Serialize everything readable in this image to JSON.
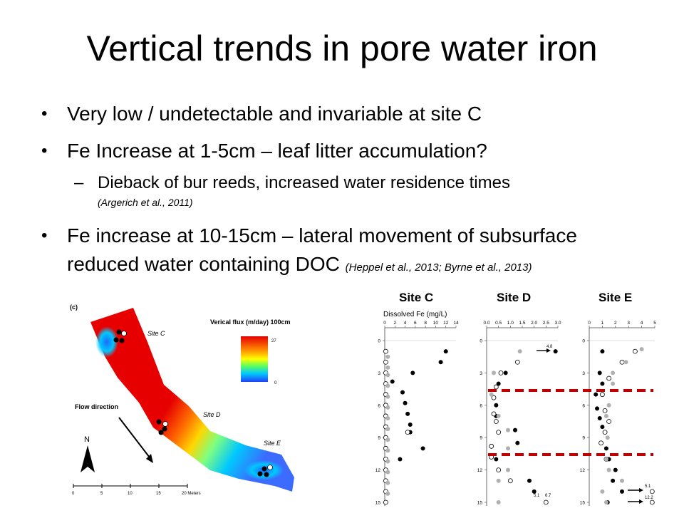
{
  "slide": {
    "title": "Vertical trends in pore water iron",
    "bullets": [
      {
        "text": "Very low / undetectable and invariable at site C"
      },
      {
        "text": "Fe Increase at 1-5cm – leaf litter accumulation?"
      },
      {
        "text": "Fe increase at 10-15cm – lateral movement of subsurface",
        "text2": "reduced water containing DOC",
        "cite": "(Heppel et al., 2013; Byrne et al., 2013)"
      }
    ],
    "subbullet": {
      "text": "Dieback of bur reeds, increased water residence times",
      "cite": "(Argerich et al., 2011)"
    }
  },
  "map": {
    "panel_label": "(c)",
    "legend_title": "Verical flux (m/day) 100cm",
    "legend_max": "27",
    "legend_min": "0",
    "flow_label": "Flow direction",
    "north": "N",
    "site_labels": [
      "Site C",
      "Site D",
      "Site E"
    ],
    "scale_labels": [
      "0",
      "5",
      "10",
      "15",
      "20 Meters"
    ],
    "colors": {
      "high": "#e60000",
      "mid": "#ffd700",
      "low": "#1e90ff"
    }
  },
  "profiles": {
    "site_headers": [
      "Site C",
      "Site D",
      "Site E"
    ],
    "axis_title": "Dissolved Fe (mg/L)",
    "depth_ticks": [
      "0",
      "3",
      "6",
      "9",
      "12",
      "15"
    ],
    "annotations_d": [
      "4.8",
      "5.1",
      "6.7"
    ],
    "annotations_e": [
      "5.1",
      "12.2"
    ],
    "dashed_line_color": "#c00000"
  },
  "chart_data": [
    {
      "type": "scatter",
      "title": "Site C",
      "xlabel": "Dissolved Fe (mg/L)",
      "x_ticks": [
        "0",
        "2",
        "4",
        "6",
        "8",
        "10",
        "12",
        "14"
      ],
      "xlim": [
        0,
        14
      ],
      "ylim": [
        0,
        15
      ],
      "series": [
        {
          "style": "filled",
          "points": [
            [
              12,
              1
            ],
            [
              11,
              2
            ],
            [
              5.5,
              3
            ],
            [
              1.5,
              3.8
            ],
            [
              3.5,
              4.8
            ],
            [
              4,
              5.8
            ],
            [
              4.5,
              6.8
            ],
            [
              5,
              7.8
            ],
            [
              5,
              8.5
            ],
            [
              7.5,
              10
            ],
            [
              3,
              11
            ]
          ]
        },
        {
          "style": "open",
          "points": [
            [
              0.2,
              1
            ],
            [
              0.2,
              2
            ],
            [
              0.2,
              3
            ],
            [
              0.2,
              4
            ],
            [
              0.2,
              5
            ],
            [
              0.2,
              6
            ],
            [
              0.2,
              7
            ],
            [
              0.2,
              8
            ],
            [
              4.5,
              8.5
            ],
            [
              0.2,
              9
            ],
            [
              0.2,
              10
            ],
            [
              0.2,
              11
            ],
            [
              0.2,
              12
            ],
            [
              0.2,
              13
            ],
            [
              0.2,
              14
            ],
            [
              0.2,
              15
            ]
          ]
        },
        {
          "style": "grey",
          "points": [
            [
              0.6,
              1.5
            ],
            [
              0.6,
              2.5
            ],
            [
              0.6,
              3.2
            ],
            [
              0.6,
              4.2
            ],
            [
              0.6,
              5.2
            ],
            [
              0.6,
              6.2
            ],
            [
              0.6,
              7.2
            ],
            [
              0.6,
              8.2
            ],
            [
              0.6,
              9.2
            ],
            [
              0.6,
              10.2
            ],
            [
              0.6,
              11.2
            ],
            [
              0.6,
              12.2
            ],
            [
              0.6,
              13.2
            ],
            [
              0.6,
              14.2
            ]
          ]
        }
      ]
    },
    {
      "type": "scatter",
      "title": "Site D",
      "x_ticks": [
        "0.0",
        "0.5",
        "1.0",
        "1.5",
        "2.0",
        "2.5",
        "3.0"
      ],
      "xlim": [
        0,
        3
      ],
      "ylim": [
        0,
        15
      ],
      "series": [
        {
          "style": "filled",
          "points": [
            [
              2.9,
              1
            ],
            [
              0.8,
              3
            ],
            [
              0.5,
              4
            ],
            [
              0.4,
              6
            ],
            [
              0.4,
              7
            ],
            [
              1.2,
              8.3
            ],
            [
              1.3,
              9.5
            ],
            [
              0.4,
              11
            ],
            [
              1.8,
              13
            ],
            [
              2.0,
              14
            ]
          ]
        },
        {
          "style": "open",
          "points": [
            [
              1.3,
              2
            ],
            [
              0.6,
              3
            ],
            [
              0.4,
              4.3
            ],
            [
              0.3,
              5.3
            ],
            [
              0.3,
              6.8
            ],
            [
              0.4,
              7.5
            ],
            [
              0.5,
              8.5
            ],
            [
              0.2,
              9.8
            ],
            [
              0.2,
              10.8
            ],
            [
              0.5,
              12
            ],
            [
              1.0,
              13
            ],
            [
              2.5,
              15
            ]
          ]
        },
        {
          "style": "grey",
          "points": [
            [
              1.4,
              1
            ],
            [
              0.3,
              3
            ],
            [
              0.2,
              5
            ],
            [
              0.5,
              7
            ],
            [
              0.9,
              8.3
            ],
            [
              0.9,
              10
            ],
            [
              0.9,
              12
            ],
            [
              0.5,
              13
            ],
            [
              0.5,
              15
            ]
          ]
        }
      ]
    },
    {
      "type": "scatter",
      "title": "Site E",
      "x_ticks": [
        "0",
        "1",
        "2",
        "3",
        "4",
        "5"
      ],
      "xlim": [
        0,
        5
      ],
      "ylim": [
        0,
        15
      ],
      "series": [
        {
          "style": "filled",
          "points": [
            [
              1,
              1
            ],
            [
              0.8,
              3
            ],
            [
              1,
              4
            ],
            [
              0.5,
              5
            ],
            [
              0.6,
              6.3
            ],
            [
              0.8,
              7.2
            ],
            [
              1,
              8
            ],
            [
              1.3,
              10
            ],
            [
              1.5,
              11
            ],
            [
              2,
              12
            ],
            [
              1.8,
              13
            ],
            [
              2.5,
              14
            ],
            [
              1.4,
              15
            ]
          ]
        },
        {
          "style": "open",
          "points": [
            [
              3.5,
              1
            ],
            [
              2.5,
              2
            ],
            [
              1.5,
              3.5
            ],
            [
              1,
              5
            ],
            [
              1.2,
              6.5
            ],
            [
              1.5,
              7.5
            ],
            [
              1.2,
              8.5
            ],
            [
              0.9,
              9.5
            ],
            [
              1.3,
              11
            ],
            [
              4.8,
              14
            ],
            [
              4.8,
              15
            ]
          ]
        },
        {
          "style": "grey",
          "points": [
            [
              4,
              0.8
            ],
            [
              2.8,
              2
            ],
            [
              1.8,
              3
            ],
            [
              1.8,
              4
            ],
            [
              1.5,
              6
            ],
            [
              1.3,
              7
            ],
            [
              1.4,
              9
            ],
            [
              1.3,
              11
            ],
            [
              1.5,
              12
            ],
            [
              2.5,
              13
            ],
            [
              1,
              14
            ],
            [
              1.3,
              15
            ]
          ]
        }
      ]
    }
  ]
}
